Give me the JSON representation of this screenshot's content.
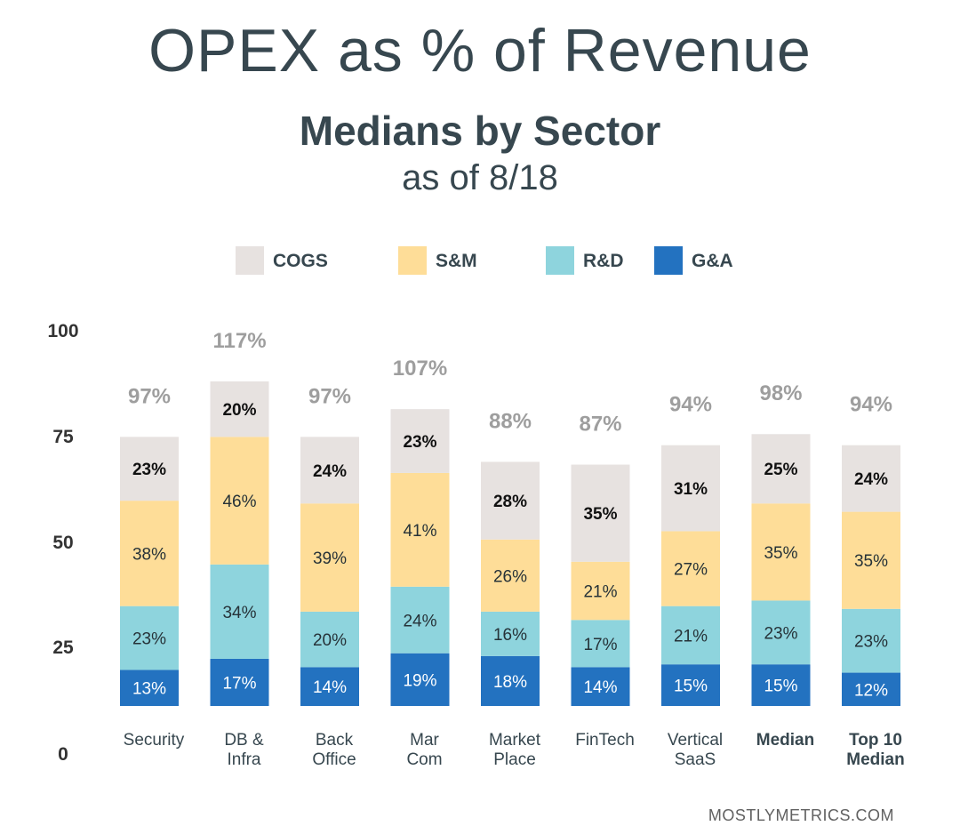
{
  "title": "OPEX as % of Revenue",
  "subtitle": "Medians by Sector",
  "subtitle2": "as of 8/18",
  "footer": "MOSTLYMETRICS.COM",
  "chart_data": {
    "type": "bar",
    "stacked": true,
    "categories": [
      [
        "Security"
      ],
      [
        "DB &",
        "Infra"
      ],
      [
        "Back",
        "Office"
      ],
      [
        "Mar",
        "Com"
      ],
      [
        "Market",
        "Place"
      ],
      [
        "FinTech"
      ],
      [
        "Vertical",
        "SaaS"
      ],
      [
        "Median"
      ],
      [
        "Top 10",
        "Median"
      ]
    ],
    "bold_categories": [
      false,
      false,
      false,
      false,
      false,
      false,
      false,
      true,
      true
    ],
    "totals": [
      "97%",
      "117%",
      "97%",
      "107%",
      "88%",
      "87%",
      "94%",
      "98%",
      "94%"
    ],
    "series": [
      {
        "name": "G&A",
        "color": "#2372c0",
        "label_color": "#ffffff",
        "label_bold": false,
        "values": [
          13,
          17,
          14,
          19,
          18,
          14,
          15,
          15,
          12
        ]
      },
      {
        "name": "R&D",
        "color": "#8ed4dd",
        "label_color": "#263238",
        "label_bold": false,
        "values": [
          23,
          34,
          20,
          24,
          16,
          17,
          21,
          23,
          23
        ]
      },
      {
        "name": "S&M",
        "color": "#fedd98",
        "label_color": "#263238",
        "label_bold": false,
        "values": [
          38,
          46,
          39,
          41,
          26,
          21,
          27,
          35,
          35
        ]
      },
      {
        "name": "COGS",
        "color": "#e7e2e0",
        "label_color": "#111111",
        "label_bold": true,
        "values": [
          23,
          20,
          24,
          23,
          28,
          35,
          31,
          25,
          24
        ]
      }
    ],
    "legend_order": [
      "COGS",
      "S&M",
      "R&D",
      "G&A"
    ],
    "legend_position": "top",
    "y_ticks": [
      "100",
      "75",
      "50",
      "25",
      "0"
    ],
    "ylim": [
      0,
      125
    ],
    "grid": false
  }
}
